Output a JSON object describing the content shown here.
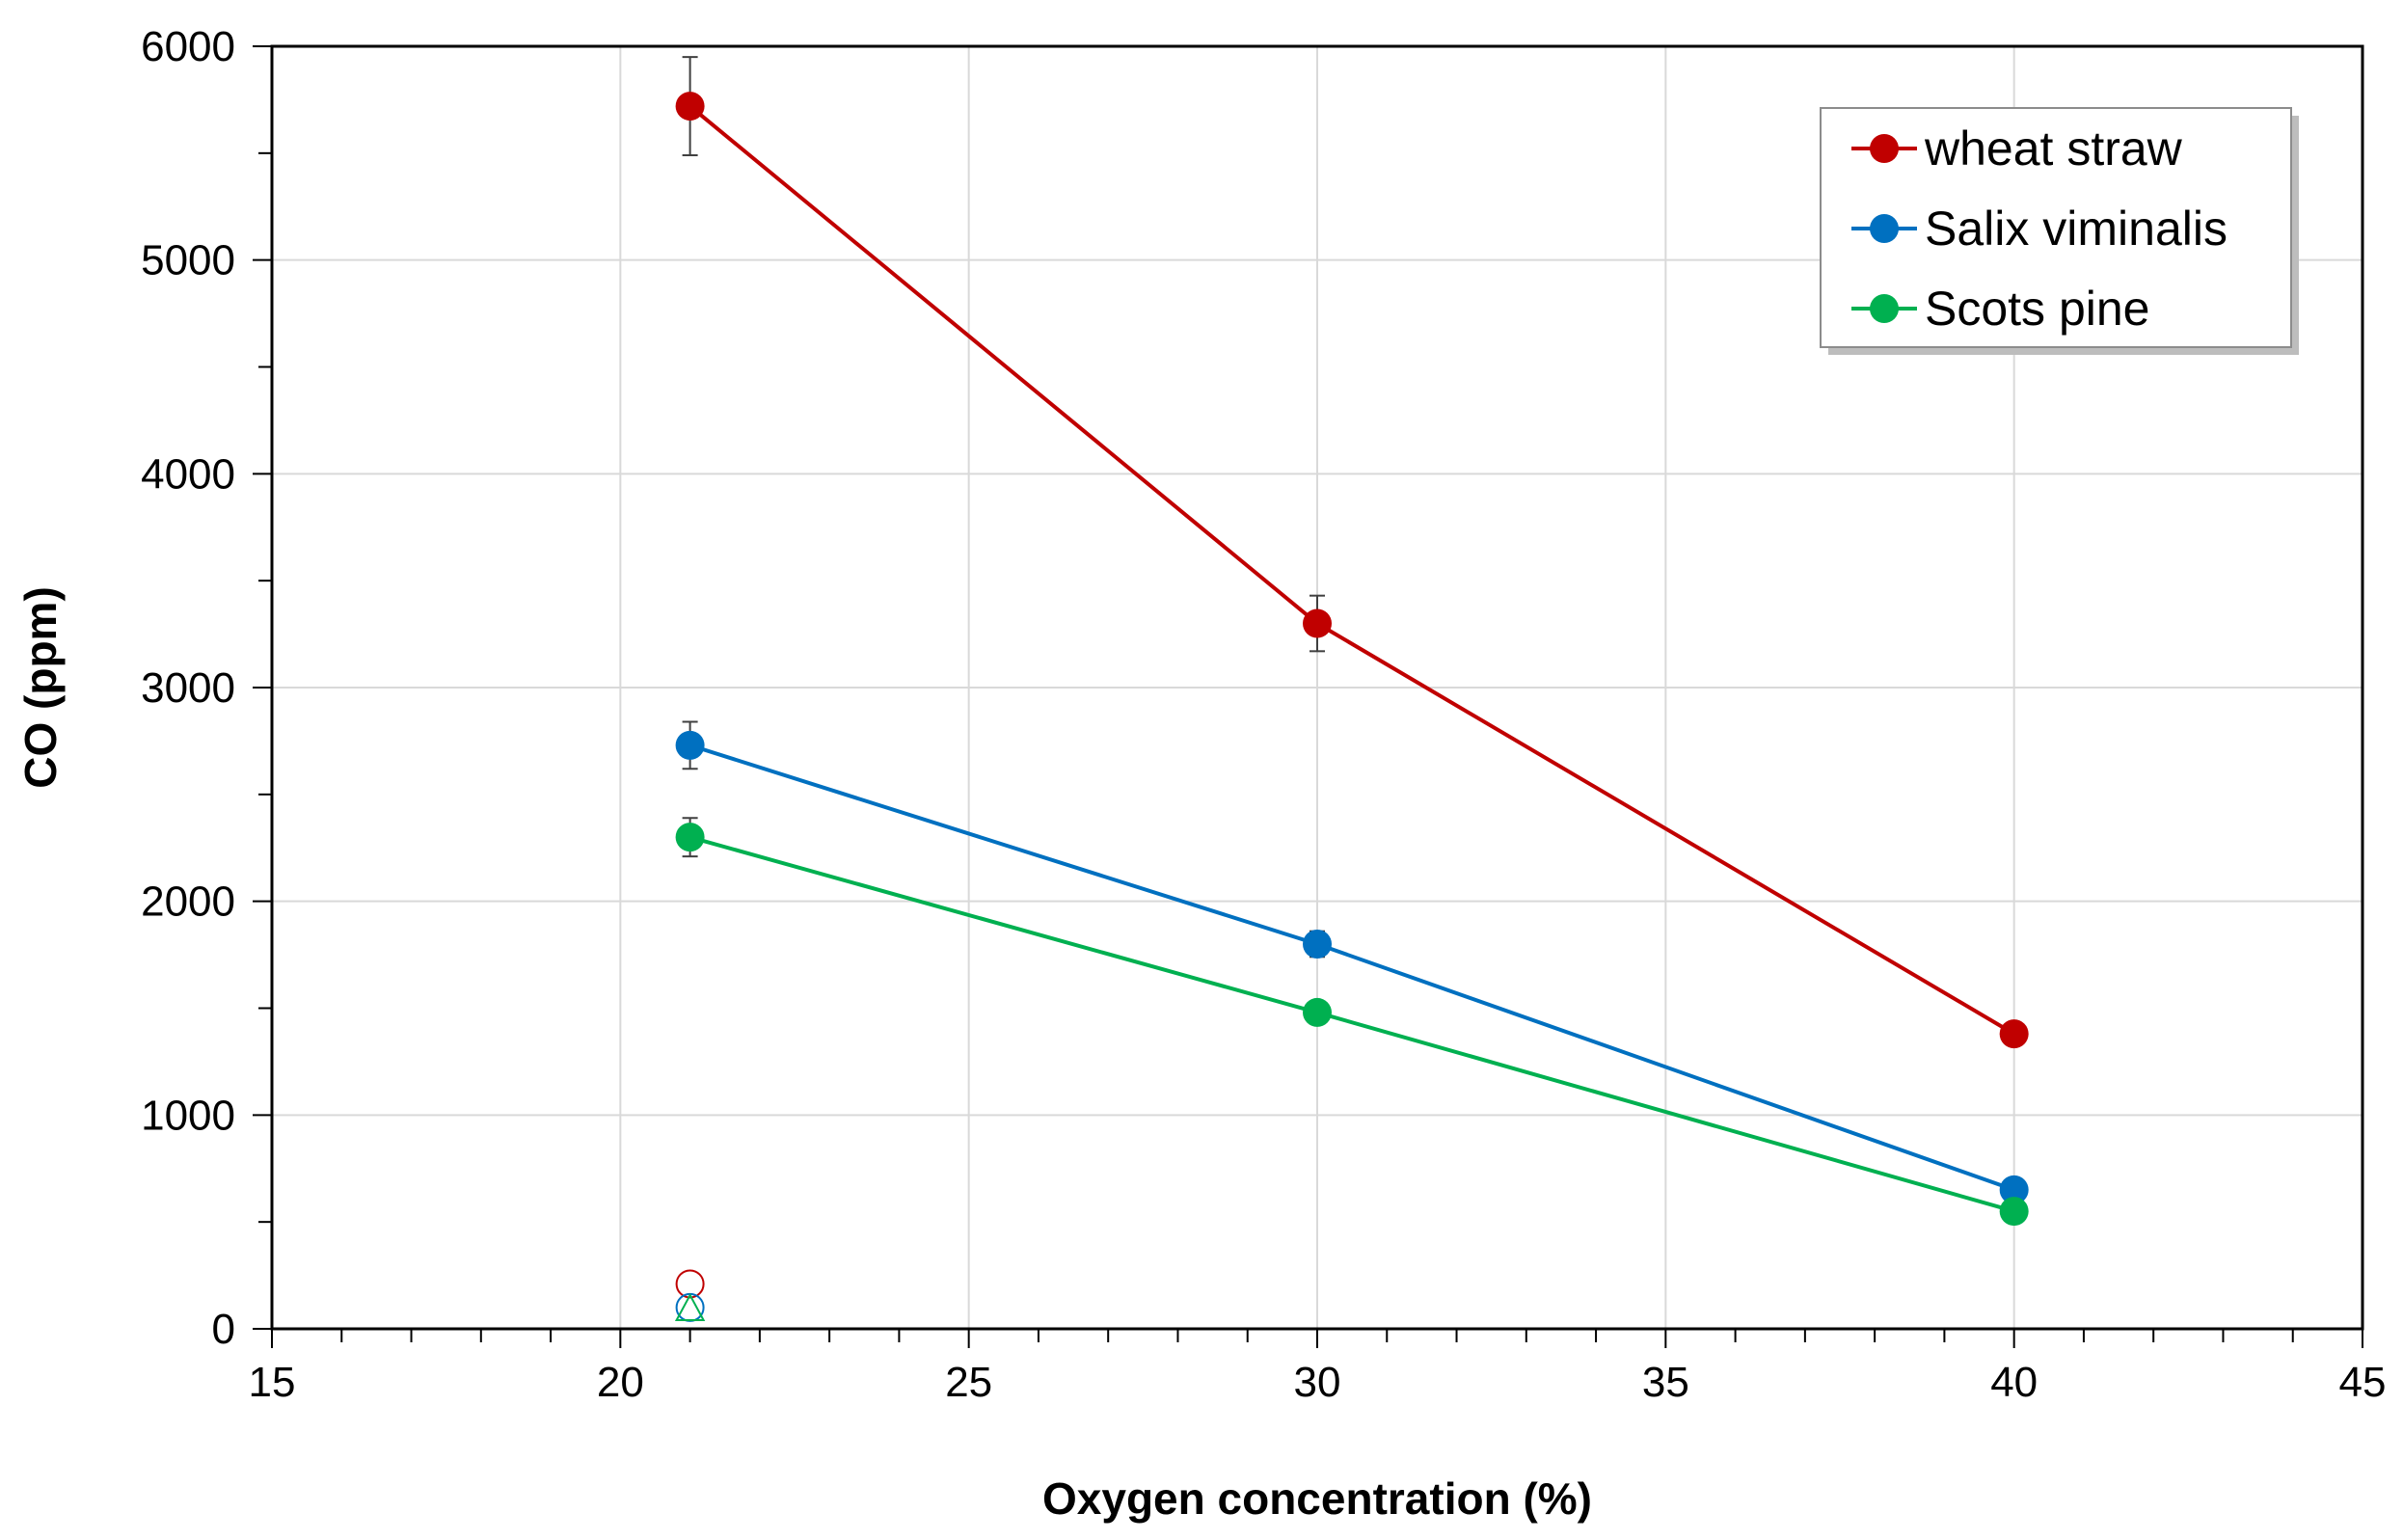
{
  "chart_data": {
    "type": "line",
    "xlabel": "Oxygen concentration (%)",
    "ylabel": "CO (ppm)",
    "xlim": [
      15,
      45
    ],
    "ylim": [
      0,
      6000
    ],
    "x_ticks": [
      15,
      20,
      25,
      30,
      35,
      40,
      45
    ],
    "y_ticks": [
      0,
      1000,
      2000,
      3000,
      4000,
      5000,
      6000
    ],
    "x_minor_step": 1,
    "y_minor_step": 500,
    "grid": true,
    "legend_position": "top-right",
    "series": [
      {
        "name": "wheat straw",
        "color": "#c00000",
        "marker": "filled-circle",
        "x": [
          21,
          30,
          40
        ],
        "y": [
          5720,
          3300,
          1380
        ],
        "error": [
          230,
          130,
          0
        ]
      },
      {
        "name": "Salix viminalis",
        "color": "#0070c0",
        "marker": "filled-circle",
        "x": [
          21,
          30,
          40
        ],
        "y": [
          2730,
          1800,
          650
        ],
        "error": [
          110,
          60,
          0
        ]
      },
      {
        "name": "Scots pine",
        "color": "#00b050",
        "marker": "filled-circle",
        "x": [
          21,
          30,
          40
        ],
        "y": [
          2300,
          1480,
          550
        ],
        "error": [
          90,
          0,
          0
        ]
      }
    ],
    "extra_points": [
      {
        "x": 21,
        "y": 210,
        "color": "#c00000",
        "marker": "open-circle"
      },
      {
        "x": 21,
        "y": 100,
        "color": "#0070c0",
        "marker": "open-circle"
      },
      {
        "x": 21,
        "y": 90,
        "color": "#00b050",
        "marker": "open-triangle"
      }
    ]
  }
}
